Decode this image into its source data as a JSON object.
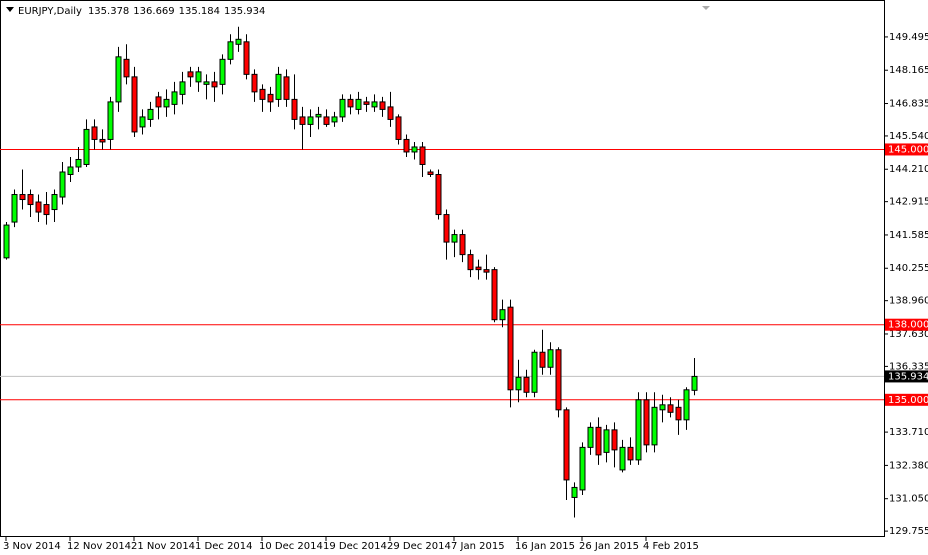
{
  "chart_data": {
    "type": "candlestick",
    "title": "EURJPY,Daily",
    "categories": [
      "3 Nov 2014",
      null,
      null,
      null,
      null,
      null,
      null,
      null,
      "12 Nov 2014",
      null,
      null,
      null,
      null,
      null,
      null,
      null,
      "21 Nov 2014",
      null,
      null,
      null,
      null,
      null,
      null,
      null,
      "1 Dec 2014",
      null,
      null,
      null,
      null,
      null,
      null,
      null,
      "10 Dec 2014",
      null,
      null,
      null,
      null,
      null,
      null,
      null,
      "19 Dec 2014",
      null,
      null,
      null,
      null,
      null,
      null,
      null,
      "29 Dec 2014",
      null,
      null,
      null,
      null,
      null,
      null,
      null,
      "7 Jan 2015",
      null,
      null,
      null,
      null,
      null,
      null,
      null,
      "16 Jan 2015",
      null,
      null,
      null,
      null,
      null,
      null,
      null,
      "26 Jan 2015",
      null,
      null,
      null,
      null,
      null,
      null,
      null,
      "4 Feb 2015",
      null,
      null,
      null,
      null,
      null,
      null
    ],
    "open": [
      140.67,
      142.1,
      143.2,
      143.2,
      142.9,
      142.8,
      142.6,
      143.1,
      144.0,
      144.3,
      144.4,
      145.9,
      145.4,
      145.4,
      146.9,
      148.6,
      147.9,
      145.9,
      146.2,
      147.1,
      146.7,
      146.8,
      147.2,
      148.1,
      147.7,
      147.6,
      147.7,
      147.6,
      148.6,
      149.2,
      149.3,
      148.0,
      147.4,
      147.2,
      147.0,
      147.9,
      147.0,
      146.3,
      146.0,
      146.3,
      146.3,
      146.1,
      146.3,
      147.0,
      146.6,
      146.9,
      146.7,
      146.9,
      146.7,
      146.3,
      145.4,
      144.9,
      145.1,
      144.1,
      144.0,
      142.4,
      141.3,
      141.6,
      140.8,
      140.3,
      140.2,
      140.2,
      138.2,
      138.7,
      135.4,
      135.9,
      135.3,
      136.9,
      136.3,
      137.0,
      134.6,
      131.1,
      131.4,
      133.1,
      133.9,
      132.9,
      133.8,
      132.2,
      133.1,
      132.6,
      135.0,
      133.2,
      134.6,
      134.8,
      134.7,
      134.2,
      135.378
    ],
    "high": [
      142.1,
      143.4,
      144.2,
      143.4,
      143.2,
      143.3,
      143.4,
      144.5,
      144.7,
      145.1,
      146.2,
      146.2,
      145.8,
      147.1,
      149.1,
      149.2,
      148.3,
      146.6,
      146.9,
      147.3,
      147.4,
      147.7,
      148.1,
      148.3,
      148.3,
      148.0,
      148.1,
      148.8,
      149.6,
      149.9,
      149.6,
      148.2,
      147.6,
      147.5,
      148.3,
      148.2,
      148.0,
      146.7,
      146.6,
      146.7,
      146.6,
      146.5,
      147.2,
      147.2,
      147.3,
      147.1,
      147.2,
      147.1,
      147.3,
      146.4,
      145.6,
      145.3,
      145.3,
      144.2,
      144.2,
      142.6,
      141.8,
      141.8,
      141.0,
      140.6,
      140.8,
      140.3,
      139.0,
      139.0,
      136.6,
      136.2,
      137.0,
      137.8,
      137.3,
      137.1,
      134.7,
      131.7,
      133.3,
      134.1,
      134.3,
      134.0,
      134.1,
      133.4,
      133.5,
      135.3,
      135.3,
      135.3,
      135.2,
      135.1,
      135.0,
      135.5,
      136.669
    ],
    "low": [
      140.6,
      141.9,
      142.6,
      142.3,
      142.1,
      142.0,
      142.1,
      142.8,
      143.7,
      144.1,
      144.3,
      145.0,
      145.0,
      145.0,
      146.5,
      147.6,
      145.5,
      145.6,
      145.9,
      146.2,
      146.3,
      146.4,
      146.8,
      147.5,
      147.3,
      147.0,
      146.9,
      147.2,
      148.4,
      148.9,
      147.8,
      146.9,
      146.5,
      146.5,
      146.7,
      146.7,
      145.8,
      145.0,
      145.5,
      145.8,
      145.9,
      145.9,
      146.1,
      146.4,
      146.4,
      146.5,
      146.5,
      146.3,
      145.9,
      145.2,
      144.7,
      144.6,
      143.9,
      143.9,
      142.2,
      140.6,
      140.7,
      140.5,
      139.9,
      139.8,
      139.8,
      138.1,
      137.9,
      134.7,
      134.9,
      135.1,
      135.1,
      136.0,
      136.0,
      134.3,
      131.0,
      130.3,
      131.2,
      132.8,
      132.4,
      132.5,
      132.3,
      132.1,
      132.4,
      132.4,
      132.9,
      132.9,
      134.1,
      134.3,
      133.6,
      133.8,
      135.184
    ],
    "close": [
      141.98,
      143.2,
      143.0,
      142.8,
      142.5,
      142.4,
      143.2,
      144.1,
      144.3,
      144.6,
      145.8,
      145.4,
      145.3,
      146.9,
      148.7,
      147.9,
      145.7,
      146.3,
      146.6,
      146.7,
      147.0,
      147.3,
      147.7,
      147.9,
      148.1,
      147.7,
      147.5,
      148.6,
      149.3,
      149.4,
      148.0,
      147.3,
      147.0,
      146.9,
      148.0,
      147.0,
      146.2,
      146.0,
      146.3,
      146.4,
      146.0,
      146.3,
      147.0,
      146.7,
      147.0,
      146.8,
      146.9,
      146.6,
      146.2,
      145.4,
      144.9,
      145.1,
      144.4,
      144.0,
      142.4,
      141.3,
      141.6,
      140.8,
      140.2,
      140.2,
      140.1,
      138.2,
      138.6,
      135.4,
      135.9,
      135.3,
      136.9,
      136.3,
      137.0,
      134.6,
      131.8,
      131.5,
      133.1,
      133.9,
      132.8,
      133.8,
      133.0,
      133.1,
      132.6,
      135.0,
      133.2,
      134.7,
      134.8,
      134.5,
      134.2,
      135.4,
      135.934
    ],
    "up_color": "#00ff00",
    "down_color": "#ff0000",
    "ylim": [
      129.52,
      150.97
    ],
    "yticks": [
      149.495,
      148.165,
      146.835,
      {
        "value": 145.54,
        "label": "145.540"
      },
      {
        "value": 144.21,
        "label": "144.210"
      },
      142.915,
      141.585,
      140.255,
      {
        "value": 138.96,
        "label": "138.960"
      },
      {
        "value": 137.63,
        "label": "137.630"
      },
      136.335,
      {
        "value": 133.71,
        "label": "133.710"
      },
      {
        "value": 132.38,
        "label": "132.380"
      },
      {
        "value": 131.05,
        "label": "131.050"
      },
      129.755
    ],
    "hlines": [
      {
        "value": 145,
        "label": "145.000"
      },
      {
        "value": 138,
        "label": "138.000"
      },
      {
        "value": 135,
        "label": "135.000"
      }
    ],
    "hline_color": "#ff0000"
  }
}
